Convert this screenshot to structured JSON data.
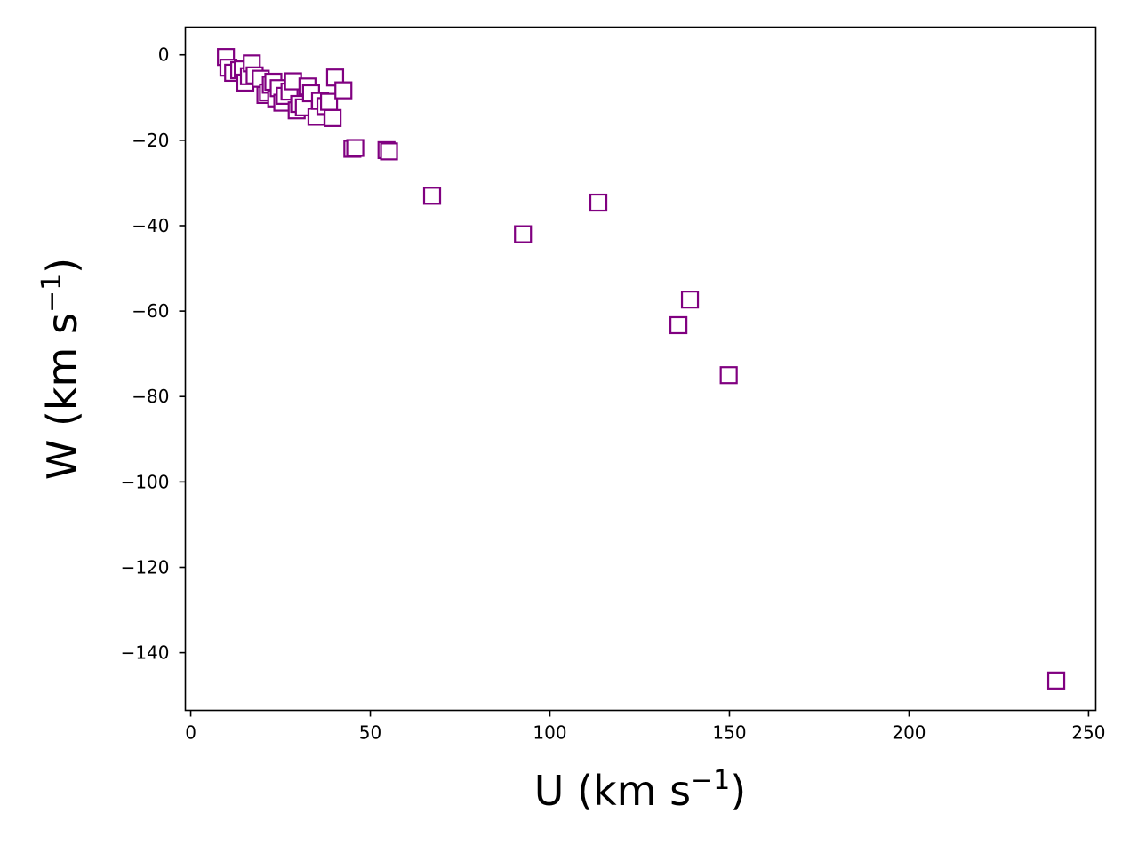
{
  "chart_data": {
    "type": "scatter",
    "title": "",
    "xlabel": {
      "main": "U (km s",
      "sup": "−1",
      "close": ")"
    },
    "ylabel": {
      "main": "W (km s",
      "sup": "−1",
      "close": ")"
    },
    "xlim": [
      -1.5,
      252
    ],
    "ylim": [
      -153.5,
      6.5
    ],
    "xticks": [
      0,
      50,
      100,
      150,
      200,
      250
    ],
    "xtick_labels": [
      "0",
      "50",
      "100",
      "150",
      "200",
      "250"
    ],
    "yticks": [
      0,
      -20,
      -40,
      -60,
      -80,
      -100,
      -120,
      -140
    ],
    "ytick_labels": [
      "0",
      "−20",
      "−40",
      "−60",
      "−80",
      "−100",
      "−120",
      "−140"
    ],
    "grid": false,
    "marker": "hollow-square",
    "marker_color": "#800080",
    "series": [
      {
        "x": [
          9.8,
          10.5,
          11.8,
          13.5,
          14.5,
          15.2,
          16.2,
          17.0,
          17.8,
          19.5,
          20.8,
          21.5,
          22.3,
          23.0,
          23.8,
          24.5,
          25.5,
          26.2,
          27.5,
          28.5,
          29.5,
          30.2,
          31.5,
          32.5,
          33.5,
          35.0,
          36.0,
          37.5,
          38.5,
          39.5,
          40.2,
          42.5,
          45.0,
          45.8,
          54.5,
          55.2,
          67.2,
          92.5,
          113.5,
          135.8,
          139.0,
          149.8,
          241.0
        ],
        "y": [
          -0.5,
          -3.0,
          -4.2,
          -3.6,
          -3.4,
          -6.5,
          -5.0,
          -2.0,
          -4.8,
          -5.6,
          -9.4,
          -8.8,
          -7.0,
          -6.3,
          -10.2,
          -7.8,
          -11.2,
          -9.6,
          -8.6,
          -6.2,
          -13.0,
          -11.5,
          -12.3,
          -7.4,
          -9.0,
          -14.5,
          -10.8,
          -12.0,
          -11.0,
          -14.8,
          -5.3,
          -8.3,
          -22.0,
          -21.8,
          -22.3,
          -22.6,
          -33.0,
          -42.0,
          -34.6,
          -63.3,
          -57.3,
          -75.0,
          -146.5
        ]
      }
    ]
  }
}
